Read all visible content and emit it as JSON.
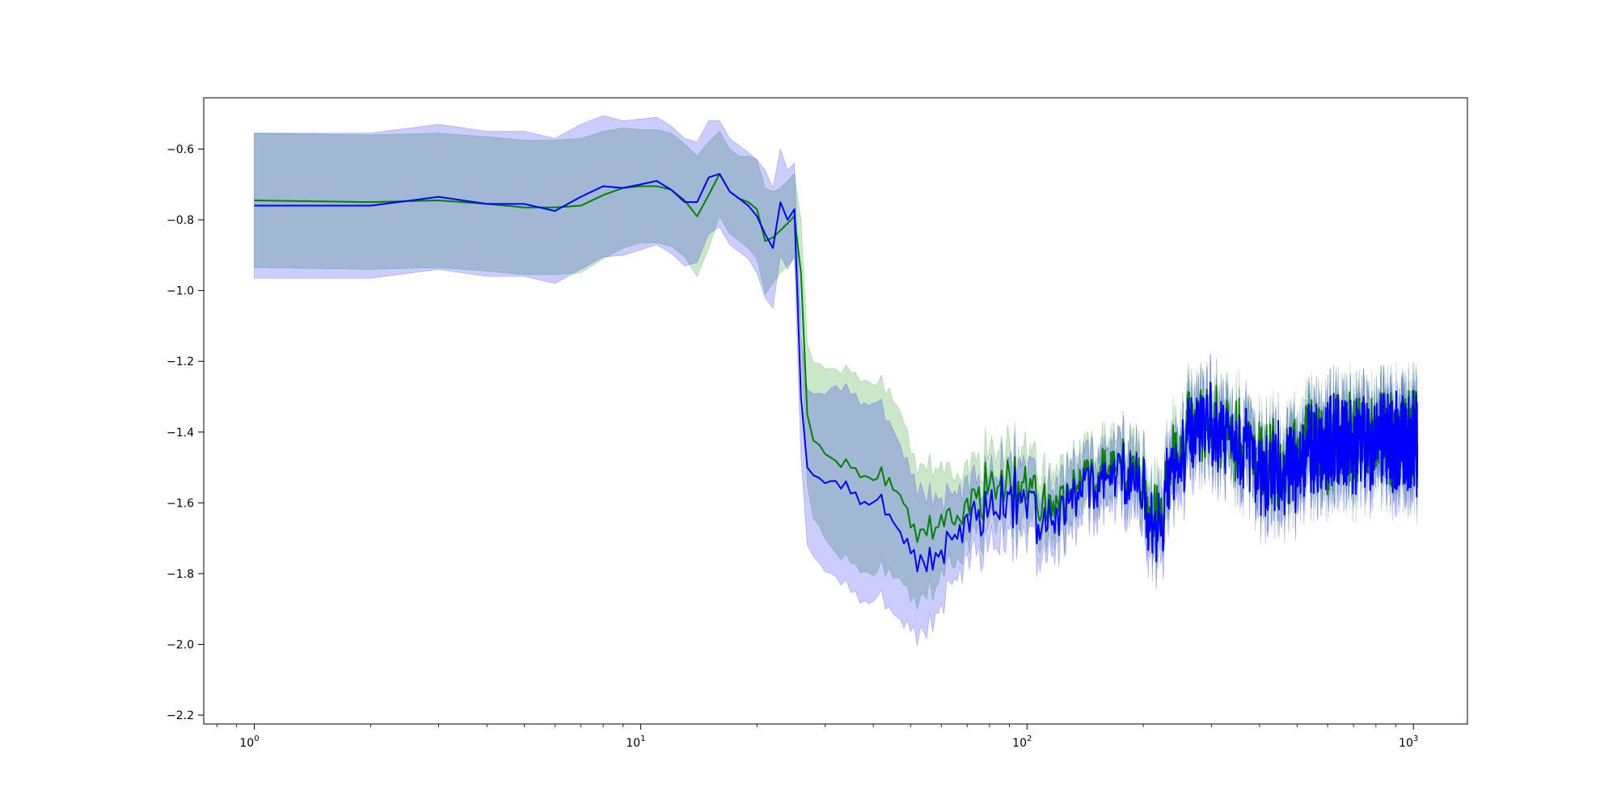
{
  "chart_data": {
    "type": "line",
    "title": "",
    "xlabel": "",
    "ylabel": "",
    "xscale": "log",
    "xlim": [
      0.74,
      1380
    ],
    "ylim": [
      -2.225,
      -0.455
    ],
    "grid": false,
    "x_ticks": [
      {
        "value": 1,
        "base": "10",
        "exp": "0"
      },
      {
        "value": 10,
        "base": "10",
        "exp": "1"
      },
      {
        "value": 100,
        "base": "10",
        "exp": "2"
      },
      {
        "value": 1000,
        "base": "10",
        "exp": "3"
      }
    ],
    "y_ticks": [
      {
        "value": -0.6,
        "label": "−0.6"
      },
      {
        "value": -0.8,
        "label": "−0.8"
      },
      {
        "value": -1.0,
        "label": "−1.0"
      },
      {
        "value": -1.2,
        "label": "−1.2"
      },
      {
        "value": -1.4,
        "label": "−1.4"
      },
      {
        "value": -1.6,
        "label": "−1.6"
      },
      {
        "value": -1.8,
        "label": "−1.8"
      },
      {
        "value": -2.0,
        "label": "−2.0"
      },
      {
        "value": -2.2,
        "label": "−2.2"
      }
    ],
    "series": [
      {
        "color": "#008000",
        "band_color": "#2ca02c",
        "band_opacity": 0.25,
        "keypoints_x": [
          1,
          2,
          3,
          4,
          5,
          6,
          7,
          8,
          9,
          10,
          11,
          12,
          13,
          14,
          15,
          16,
          17,
          18,
          19,
          20,
          21,
          22,
          23,
          24,
          25,
          26,
          27,
          28,
          30,
          32,
          35,
          38,
          40,
          42,
          45,
          48,
          50,
          52,
          55,
          58,
          60,
          63,
          66,
          70,
          75,
          80,
          85,
          90,
          95,
          100,
          110,
          120,
          130,
          140,
          150,
          160,
          170,
          180,
          190,
          200,
          210,
          220,
          230,
          240,
          250,
          270,
          300,
          330,
          360,
          400,
          450,
          500,
          550,
          600,
          700,
          800,
          900,
          1024
        ],
        "keypoints_y": [
          -0.745,
          -0.75,
          -0.745,
          -0.755,
          -0.765,
          -0.765,
          -0.76,
          -0.73,
          -0.71,
          -0.705,
          -0.705,
          -0.715,
          -0.745,
          -0.79,
          -0.73,
          -0.67,
          -0.72,
          -0.74,
          -0.75,
          -0.77,
          -0.86,
          -0.85,
          -0.83,
          -0.81,
          -0.79,
          -0.95,
          -1.35,
          -1.42,
          -1.47,
          -1.47,
          -1.5,
          -1.52,
          -1.55,
          -1.52,
          -1.55,
          -1.6,
          -1.65,
          -1.7,
          -1.66,
          -1.68,
          -1.64,
          -1.66,
          -1.65,
          -1.6,
          -1.58,
          -1.55,
          -1.56,
          -1.57,
          -1.54,
          -1.55,
          -1.58,
          -1.6,
          -1.56,
          -1.53,
          -1.52,
          -1.51,
          -1.5,
          -1.5,
          -1.52,
          -1.55,
          -1.62,
          -1.65,
          -1.58,
          -1.45,
          -1.4,
          -1.38,
          -1.36,
          -1.4,
          -1.43,
          -1.5,
          -1.48,
          -1.46,
          -1.44,
          -1.43,
          -1.42,
          -1.41,
          -1.42,
          -1.42
        ],
        "band_width": [
          0.19,
          0.19,
          0.19,
          0.19,
          0.19,
          0.19,
          0.19,
          0.18,
          0.17,
          0.16,
          0.16,
          0.16,
          0.16,
          0.17,
          0.15,
          0.12,
          0.12,
          0.12,
          0.13,
          0.14,
          0.15,
          0.13,
          0.12,
          0.12,
          0.12,
          0.15,
          0.2,
          0.22,
          0.24,
          0.26,
          0.27,
          0.27,
          0.27,
          0.26,
          0.25,
          0.23,
          0.21,
          0.19,
          0.18,
          0.17,
          0.15,
          0.13,
          0.12,
          0.11,
          0.1,
          0.1,
          0.1,
          0.1,
          0.1,
          0.1,
          0.09,
          0.09,
          0.09,
          0.08,
          0.08,
          0.08,
          0.08,
          0.08,
          0.08,
          0.08,
          0.08,
          0.08,
          0.08,
          0.08,
          0.08,
          0.08,
          0.08,
          0.08,
          0.08,
          0.08,
          0.08,
          0.08,
          0.08,
          0.08,
          0.08,
          0.08,
          0.08,
          0.08
        ],
        "noise_amplitude": [
          0,
          0,
          0,
          0,
          0,
          0,
          0,
          0,
          0,
          0,
          0,
          0,
          0,
          0,
          0,
          0,
          0,
          0,
          0,
          0,
          0,
          0,
          0,
          0,
          0,
          0,
          0,
          0.01,
          0.015,
          0.02,
          0.02,
          0.025,
          0.03,
          0.03,
          0.03,
          0.03,
          0.03,
          0.03,
          0.04,
          0.05,
          0.06,
          0.07,
          0.08,
          0.09,
          0.1,
          0.12,
          0.12,
          0.12,
          0.12,
          0.12,
          0.1,
          0.09,
          0.08,
          0.08,
          0.08,
          0.08,
          0.08,
          0.09,
          0.1,
          0.12,
          0.14,
          0.15,
          0.15,
          0.15,
          0.15,
          0.14,
          0.14,
          0.13,
          0.13,
          0.14,
          0.15,
          0.15,
          0.15,
          0.15,
          0.15,
          0.15,
          0.15,
          0.15
        ]
      },
      {
        "color": "#0000ff",
        "band_color": "#0000ff",
        "band_opacity": 0.2,
        "keypoints_x": [
          1,
          2,
          3,
          4,
          5,
          6,
          7,
          8,
          9,
          10,
          11,
          12,
          13,
          14,
          15,
          16,
          17,
          18,
          19,
          20,
          21,
          22,
          23,
          24,
          25,
          26,
          27,
          28,
          30,
          32,
          35,
          38,
          40,
          42,
          45,
          48,
          50,
          52,
          55,
          58,
          60,
          63,
          66,
          70,
          75,
          80,
          85,
          90,
          95,
          100,
          110,
          120,
          130,
          140,
          150,
          160,
          170,
          180,
          190,
          200,
          210,
          220,
          230,
          240,
          250,
          270,
          300,
          330,
          360,
          400,
          450,
          500,
          550,
          600,
          700,
          800,
          900,
          1024
        ],
        "keypoints_y": [
          -0.76,
          -0.76,
          -0.735,
          -0.755,
          -0.755,
          -0.775,
          -0.735,
          -0.705,
          -0.71,
          -0.7,
          -0.69,
          -0.715,
          -0.75,
          -0.75,
          -0.68,
          -0.67,
          -0.72,
          -0.74,
          -0.76,
          -0.79,
          -0.84,
          -0.88,
          -0.75,
          -0.8,
          -0.77,
          -1.3,
          -1.5,
          -1.52,
          -1.55,
          -1.53,
          -1.57,
          -1.6,
          -1.62,
          -1.6,
          -1.65,
          -1.7,
          -1.72,
          -1.78,
          -1.75,
          -1.77,
          -1.74,
          -1.72,
          -1.7,
          -1.65,
          -1.62,
          -1.6,
          -1.62,
          -1.62,
          -1.58,
          -1.6,
          -1.62,
          -1.63,
          -1.58,
          -1.55,
          -1.54,
          -1.53,
          -1.52,
          -1.53,
          -1.55,
          -1.58,
          -1.65,
          -1.68,
          -1.6,
          -1.47,
          -1.42,
          -1.4,
          -1.37,
          -1.41,
          -1.44,
          -1.51,
          -1.5,
          -1.48,
          -1.46,
          -1.44,
          -1.43,
          -1.42,
          -1.43,
          -1.43
        ],
        "band_width": [
          0.205,
          0.205,
          0.205,
          0.205,
          0.205,
          0.205,
          0.205,
          0.2,
          0.19,
          0.185,
          0.18,
          0.18,
          0.18,
          0.17,
          0.16,
          0.15,
          0.15,
          0.15,
          0.15,
          0.16,
          0.18,
          0.17,
          0.15,
          0.14,
          0.13,
          0.17,
          0.22,
          0.23,
          0.25,
          0.27,
          0.28,
          0.28,
          0.28,
          0.27,
          0.26,
          0.24,
          0.22,
          0.21,
          0.19,
          0.17,
          0.15,
          0.13,
          0.12,
          0.11,
          0.1,
          0.1,
          0.1,
          0.1,
          0.1,
          0.1,
          0.09,
          0.09,
          0.09,
          0.08,
          0.08,
          0.08,
          0.08,
          0.08,
          0.08,
          0.08,
          0.08,
          0.08,
          0.08,
          0.08,
          0.08,
          0.08,
          0.08,
          0.08,
          0.08,
          0.08,
          0.08,
          0.08,
          0.08,
          0.08,
          0.08,
          0.08,
          0.08,
          0.08
        ],
        "noise_amplitude": [
          0,
          0,
          0,
          0,
          0,
          0,
          0,
          0,
          0,
          0,
          0,
          0,
          0,
          0,
          0,
          0,
          0,
          0,
          0,
          0,
          0,
          0,
          0,
          0,
          0,
          0,
          0,
          0.015,
          0.02,
          0.025,
          0.025,
          0.03,
          0.035,
          0.035,
          0.035,
          0.035,
          0.035,
          0.035,
          0.045,
          0.055,
          0.065,
          0.075,
          0.085,
          0.095,
          0.11,
          0.13,
          0.13,
          0.13,
          0.13,
          0.13,
          0.11,
          0.1,
          0.09,
          0.09,
          0.09,
          0.09,
          0.09,
          0.1,
          0.11,
          0.13,
          0.15,
          0.16,
          0.16,
          0.16,
          0.16,
          0.15,
          0.15,
          0.14,
          0.14,
          0.15,
          0.16,
          0.16,
          0.16,
          0.16,
          0.16,
          0.16,
          0.16,
          0.16
        ]
      }
    ]
  }
}
